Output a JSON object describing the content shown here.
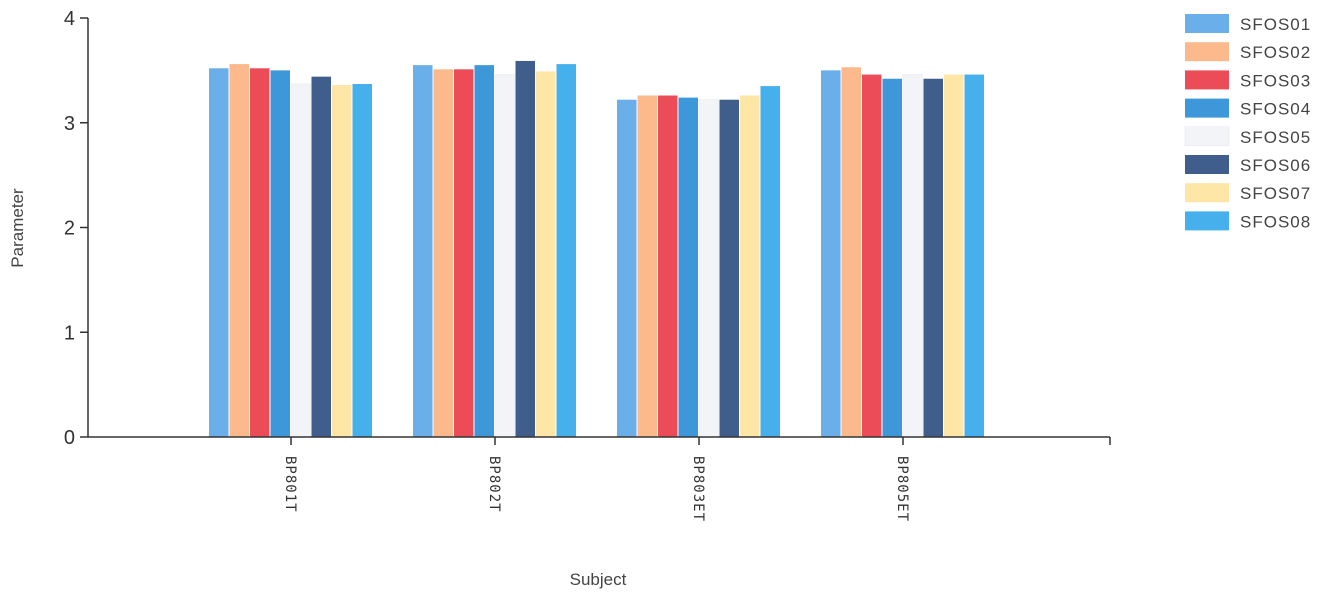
{
  "chart_data": {
    "type": "bar",
    "xlabel": "Subject",
    "ylabel": "Parameter",
    "ylim": [
      0,
      4
    ],
    "yticks": [
      "0",
      "1",
      "2",
      "3",
      "4"
    ],
    "grid": false,
    "legend_position": "top-right",
    "categories": [
      "BP801T",
      "BP802T",
      "BP803ET",
      "BP805ET"
    ],
    "series": [
      {
        "name": "SFOS01",
        "color": "#6aaeea",
        "values": [
          3.52,
          3.55,
          3.22,
          3.5
        ]
      },
      {
        "name": "SFOS02",
        "color": "#fbb98c",
        "values": [
          3.56,
          3.51,
          3.26,
          3.53
        ]
      },
      {
        "name": "SFOS03",
        "color": "#ec4c58",
        "values": [
          3.52,
          3.51,
          3.26,
          3.46
        ]
      },
      {
        "name": "SFOS04",
        "color": "#3d97d9",
        "values": [
          3.5,
          3.55,
          3.24,
          3.42
        ]
      },
      {
        "name": "SFOS05",
        "color": "#f3f4f8",
        "values": [
          3.37,
          3.46,
          3.22,
          3.46
        ]
      },
      {
        "name": "SFOS06",
        "color": "#3f5e8c",
        "values": [
          3.44,
          3.59,
          3.22,
          3.42
        ]
      },
      {
        "name": "SFOS07",
        "color": "#fde6a6",
        "values": [
          3.36,
          3.49,
          3.26,
          3.46
        ]
      },
      {
        "name": "SFOS08",
        "color": "#45b0ec",
        "values": [
          3.37,
          3.56,
          3.35,
          3.46
        ]
      }
    ]
  }
}
